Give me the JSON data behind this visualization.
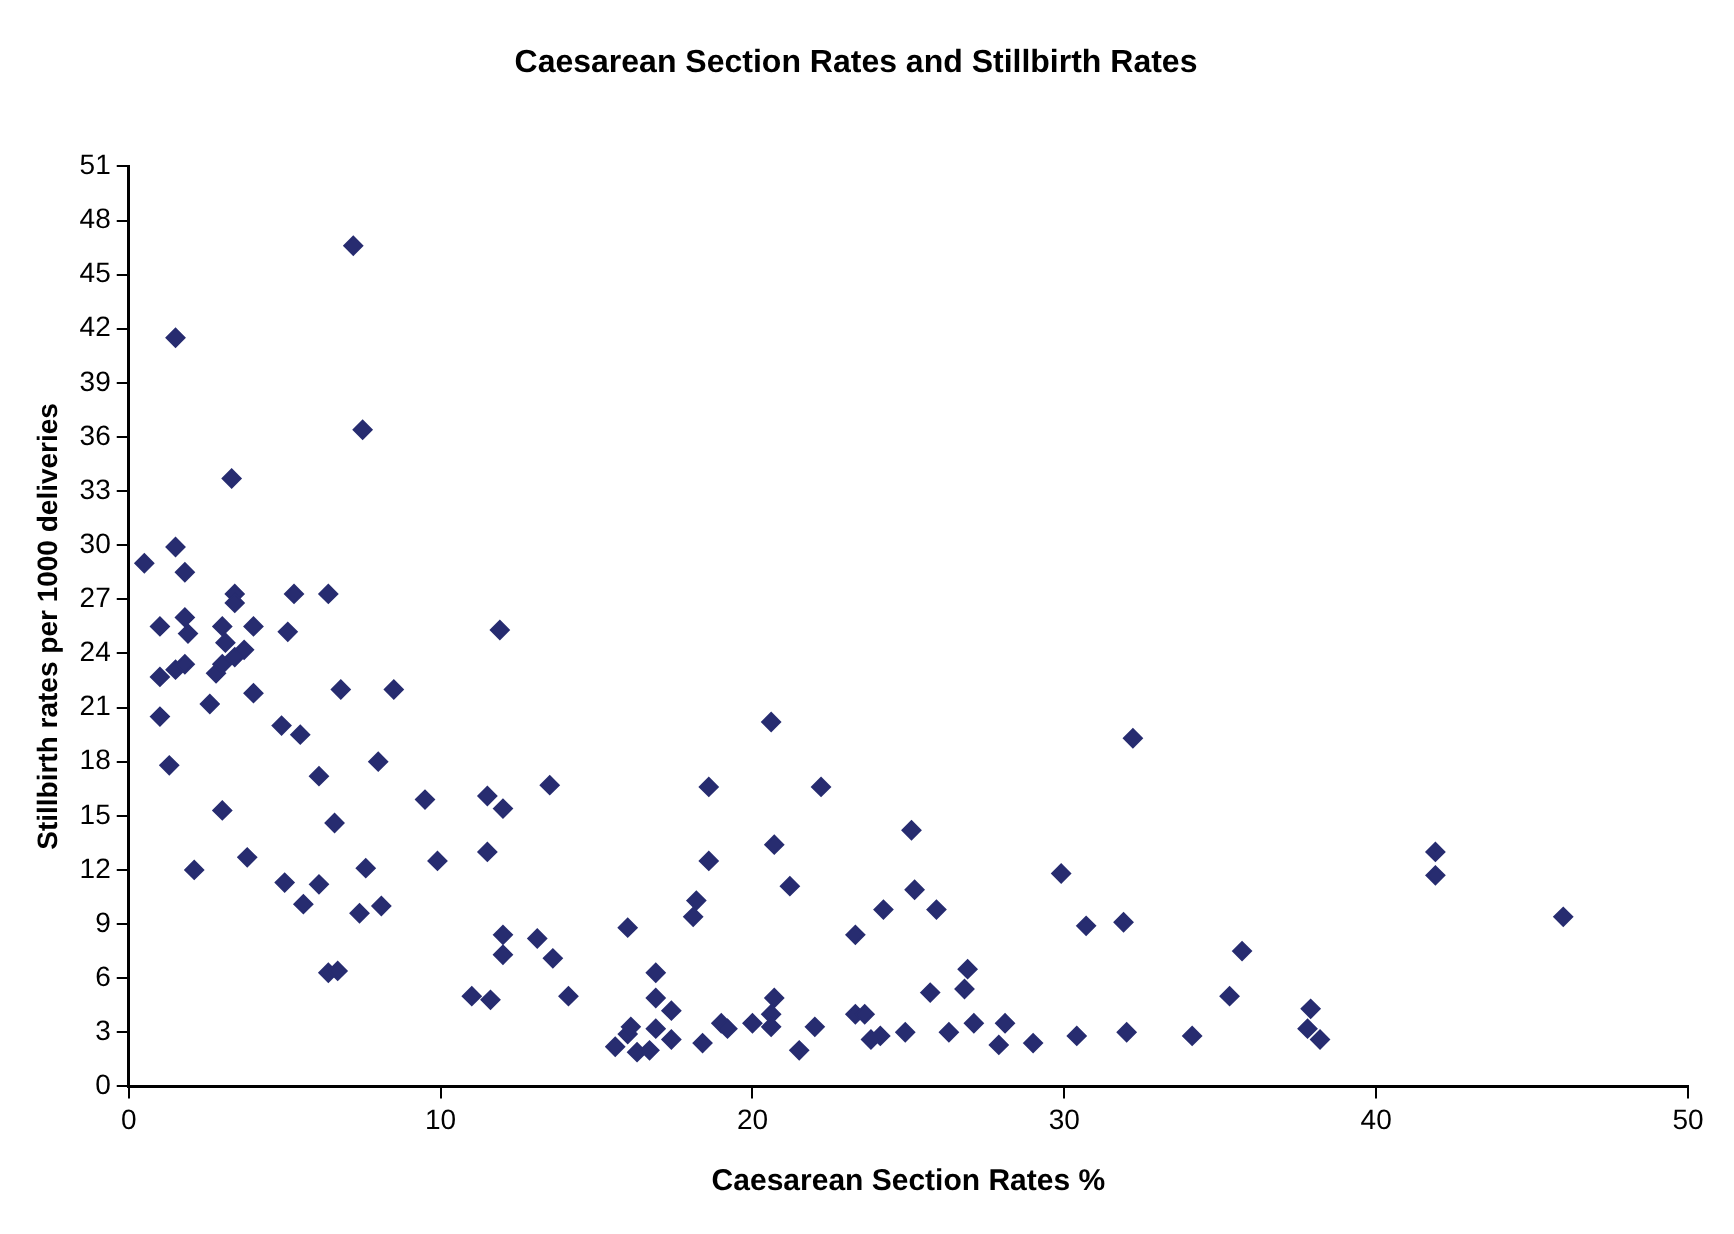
{
  "chart_data": {
    "type": "scatter",
    "title": "Caesarean Section Rates and Stillbirth Rates",
    "xlabel": "Caesarean Section Rates %",
    "ylabel": "Stillbirth rates per 1000 deliveries",
    "marker": "diamond",
    "grid": false,
    "legend": false,
    "xlim": [
      0,
      50
    ],
    "xticks": [
      0,
      10,
      20,
      30,
      40,
      50
    ],
    "ylim": [
      0,
      51
    ],
    "yticks": [
      0,
      3,
      6,
      9,
      12,
      15,
      18,
      21,
      24,
      27,
      30,
      33,
      36,
      39,
      42,
      45,
      48,
      51
    ],
    "series": [
      {
        "color": "#272c70",
        "x": [
          0.5,
          7.2,
          1.5,
          7.5,
          3.3,
          1.5,
          1.8,
          1.0,
          1.8,
          1.9,
          3.4,
          3.4,
          5.3,
          6.4,
          3.0,
          4.0,
          5.1,
          11.9,
          1.0,
          1.5,
          1.8,
          2.8,
          3.0,
          3.4,
          3.7,
          3.1,
          4.0,
          2.6,
          6.8,
          8.5,
          1.0,
          1.3,
          4.9,
          5.5,
          6.1,
          8.0,
          6.6,
          9.5,
          11.5,
          12.0,
          13.5,
          3.0,
          3.8,
          2.1,
          5.0,
          6.1,
          5.6,
          7.6,
          9.9,
          11.5,
          7.4,
          8.1,
          6.4,
          6.7,
          12.0,
          12.0,
          13.1,
          13.6,
          11.0,
          11.6,
          14.1,
          16.0,
          16.9,
          16.9,
          17.4,
          15.6,
          16.0,
          16.1,
          16.3,
          16.7,
          16.9,
          17.4,
          18.4,
          20.6,
          18.6,
          22.2,
          20.7,
          18.6,
          21.2,
          18.2,
          18.1,
          20.7,
          20.6,
          20.0,
          20.6,
          19.0,
          19.2,
          22.0,
          21.5,
          25.1,
          29.9,
          23.3,
          24.2,
          25.2,
          25.9,
          30.7,
          31.9,
          32.2,
          41.9,
          41.9,
          46.0,
          35.7,
          35.3,
          37.9,
          37.8,
          38.2,
          34.1,
          32.0,
          30.4,
          29.0,
          27.9,
          28.1,
          27.1,
          26.9,
          26.8,
          25.7,
          26.3,
          24.9,
          24.1,
          23.8,
          23.3,
          23.6
        ],
        "values": [
          29.0,
          46.6,
          41.5,
          36.4,
          33.7,
          29.9,
          28.5,
          25.5,
          26.0,
          25.1,
          27.3,
          26.8,
          27.3,
          27.3,
          25.5,
          25.5,
          25.2,
          25.3,
          22.7,
          23.1,
          23.4,
          22.9,
          23.4,
          23.8,
          24.2,
          24.6,
          21.8,
          21.2,
          22.0,
          22.0,
          20.5,
          17.8,
          20.0,
          19.5,
          17.2,
          18.0,
          14.6,
          15.9,
          16.1,
          15.4,
          16.7,
          15.3,
          12.7,
          12.0,
          11.3,
          11.2,
          10.1,
          12.1,
          12.5,
          13.0,
          9.6,
          10.0,
          6.3,
          6.4,
          8.4,
          7.3,
          8.2,
          7.1,
          5.0,
          4.8,
          5.0,
          8.8,
          6.3,
          4.9,
          4.2,
          2.2,
          2.9,
          3.3,
          1.9,
          2.0,
          3.2,
          2.6,
          2.4,
          20.2,
          16.6,
          16.6,
          13.4,
          12.5,
          11.1,
          10.3,
          9.4,
          4.9,
          4.0,
          3.5,
          3.3,
          3.5,
          3.2,
          3.3,
          2.0,
          14.2,
          11.8,
          8.4,
          9.8,
          10.9,
          9.8,
          8.9,
          9.1,
          19.3,
          13.0,
          11.7,
          9.4,
          7.5,
          5.0,
          4.3,
          3.2,
          2.6,
          2.8,
          3.0,
          2.8,
          2.4,
          2.3,
          3.5,
          3.5,
          6.5,
          5.4,
          5.2,
          3.0,
          3.0,
          2.8,
          2.6,
          4.0,
          4.0
        ]
      }
    ]
  }
}
